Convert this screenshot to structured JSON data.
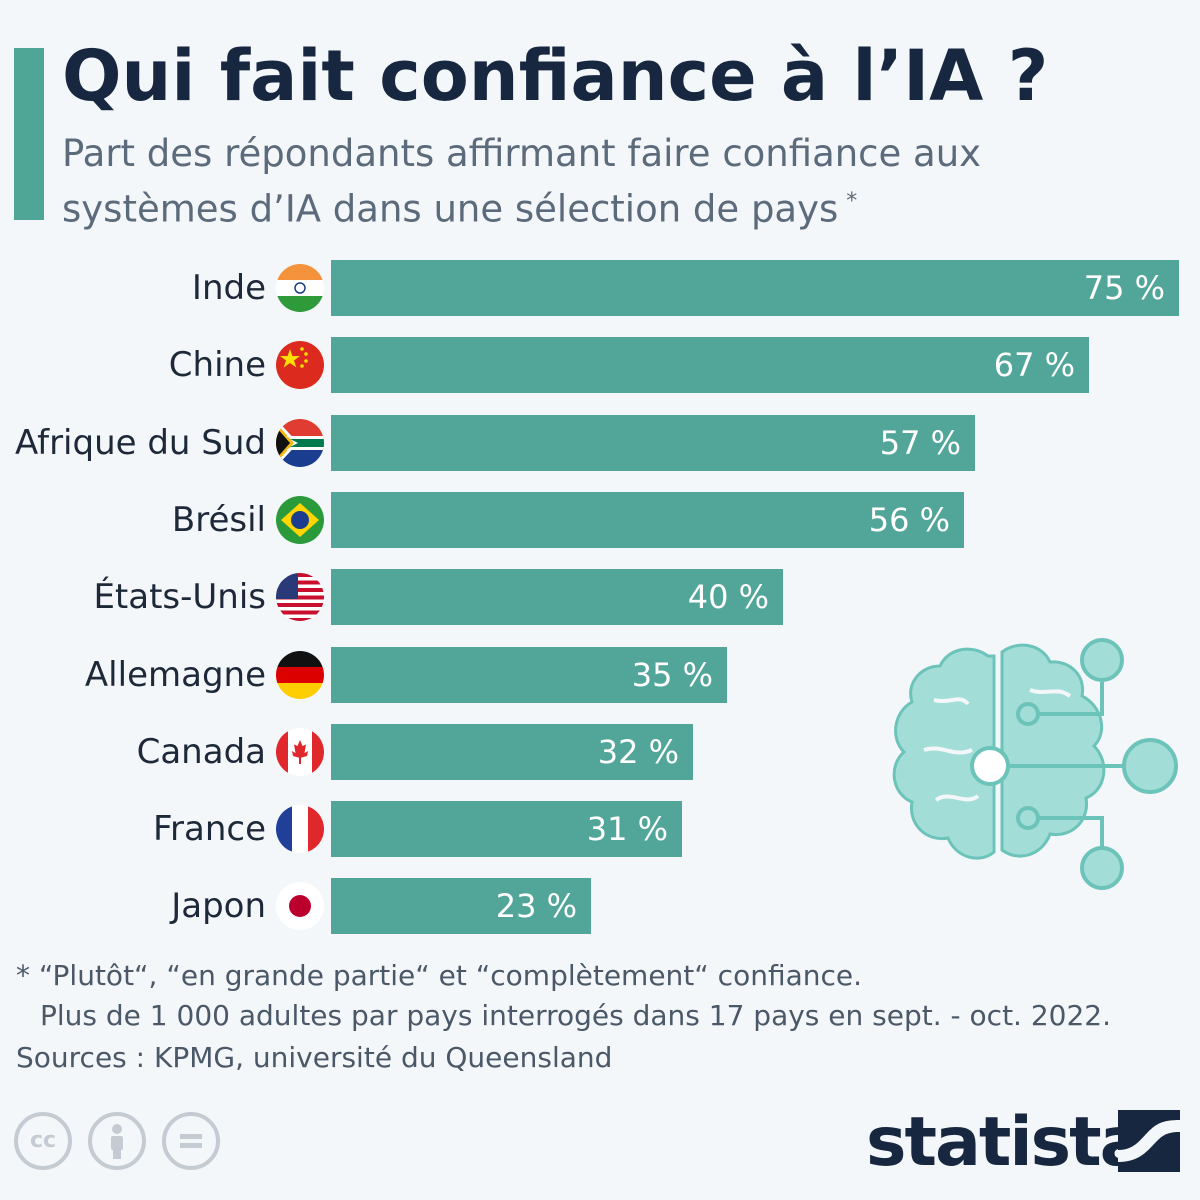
{
  "header": {
    "title": "Qui fait confiance à l’IA ?",
    "subtitle": "Part des répondants affirmant faire confiance aux systèmes d’IA dans une sélection de pays",
    "subtitle_marker": "*"
  },
  "chart_data": {
    "type": "bar",
    "orientation": "horizontal",
    "title": "Qui fait confiance à l’IA ?",
    "subtitle": "Part des répondants affirmant faire confiance aux systèmes d’IA dans une sélection de pays",
    "categories": [
      "Inde",
      "Chine",
      "Afrique du Sud",
      "Brésil",
      "États-Unis",
      "Allemagne",
      "Canada",
      "France",
      "Japon"
    ],
    "values": [
      75,
      67,
      57,
      56,
      40,
      35,
      32,
      31,
      23
    ],
    "value_labels": [
      "75 %",
      "67 %",
      "57 %",
      "56 %",
      "40 %",
      "35 %",
      "32 %",
      "31 %",
      "23 %"
    ],
    "flags": [
      "india-flag-icon",
      "china-flag-icon",
      "south-africa-flag-icon",
      "brazil-flag-icon",
      "usa-flag-icon",
      "germany-flag-icon",
      "canada-flag-icon",
      "france-flag-icon",
      "japan-flag-icon"
    ],
    "xlim": [
      0,
      75
    ],
    "unit": "%",
    "grid": false,
    "bar_color": "#52a699"
  },
  "illustration": {
    "icon": "ai-brain-circuit-icon"
  },
  "footer": {
    "note_line1": "* “Plutôt“, “en grande partie“ et “complètement“ confiance.",
    "note_line2": "Plus de 1 000 adultes par pays interrogés dans 17 pays en sept. - oct. 2022.",
    "sources": "Sources : KPMG, université du Queensland",
    "license_icons": [
      "creative-commons-icon",
      "attribution-icon",
      "no-derivatives-icon"
    ],
    "cc_text": "cc",
    "logo": "statista"
  },
  "colors": {
    "accent": "#4fa596",
    "bar": "#52a699",
    "title": "#16273f",
    "subtitle": "#5c6b7b",
    "background": "#f4f7fa",
    "illustration": "#a3ddd7"
  }
}
